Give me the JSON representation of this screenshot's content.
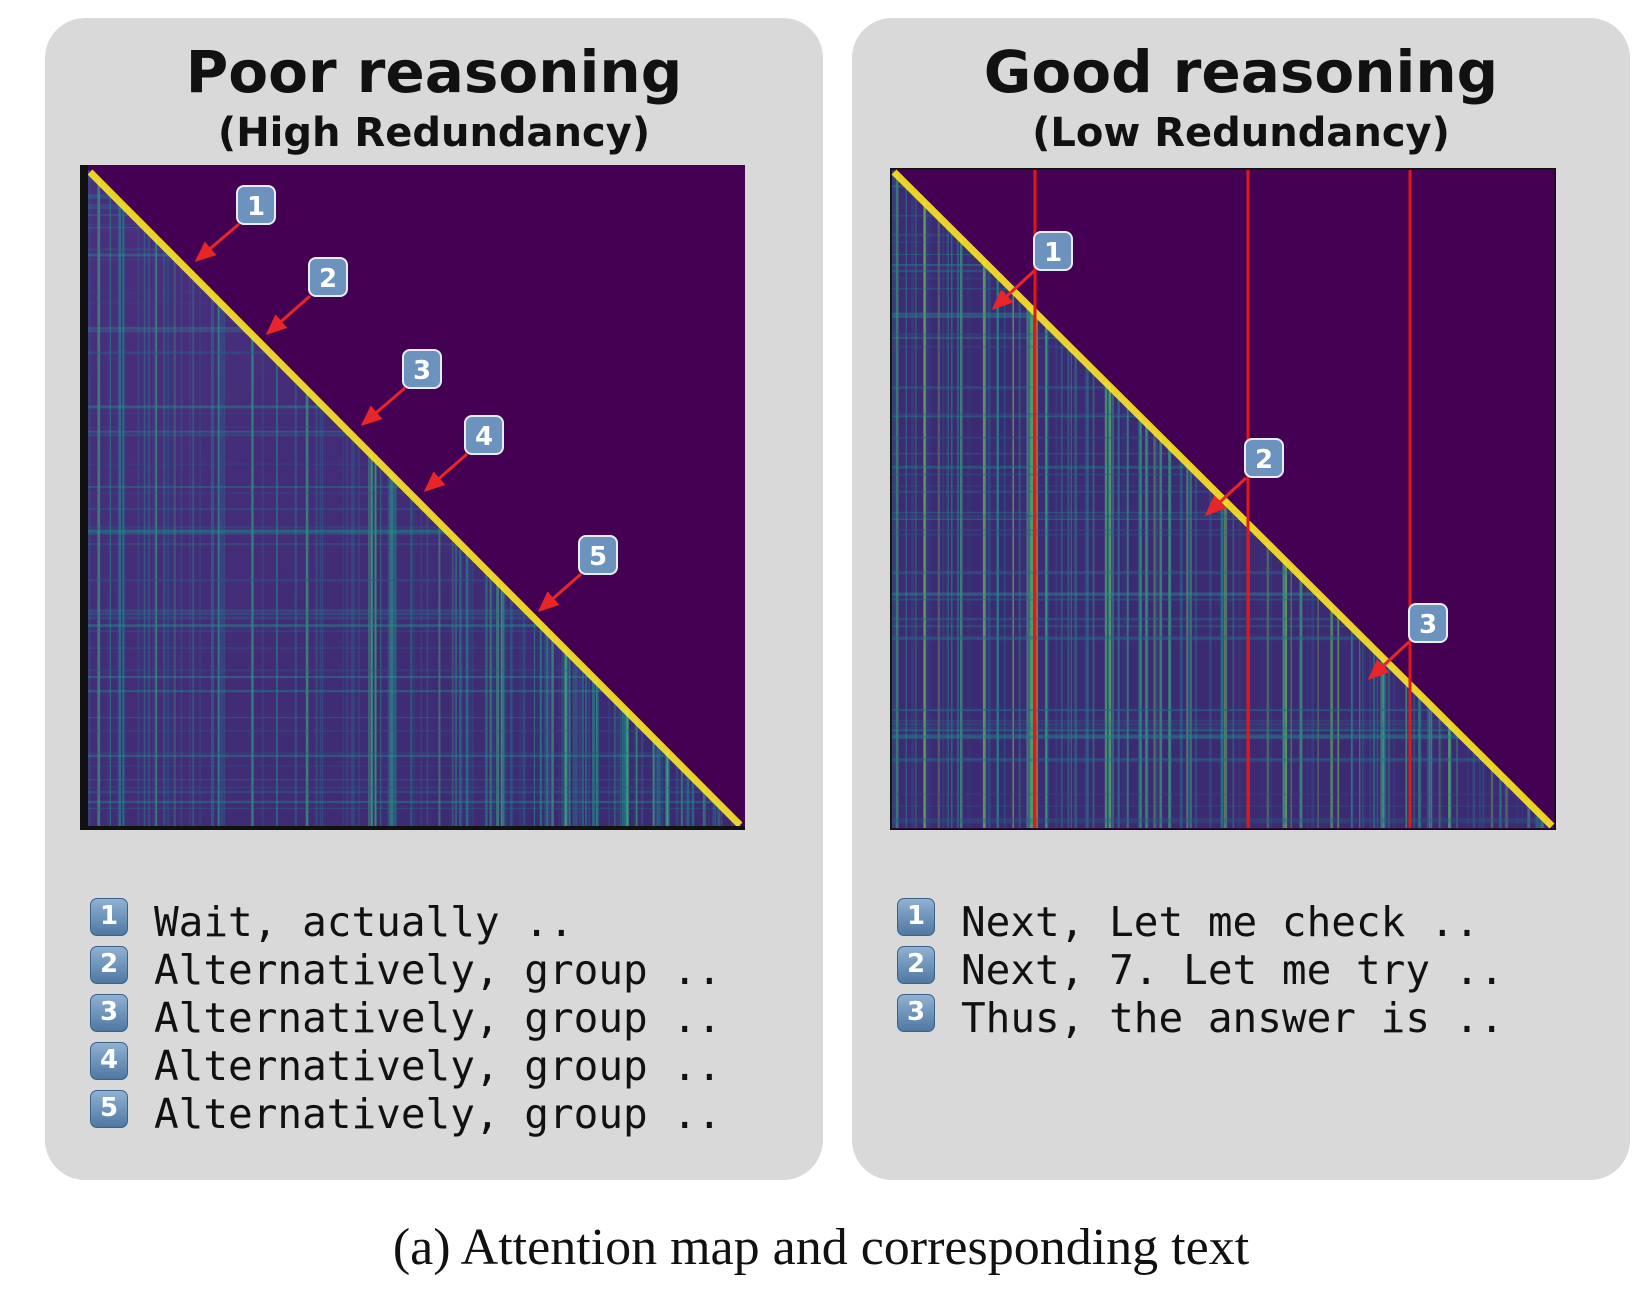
{
  "panels": {
    "left": {
      "title": "Poor reasoning",
      "subtitle": "(High Redundancy)",
      "callouts": [
        "1",
        "2",
        "3",
        "4",
        "5"
      ],
      "steps": [
        {
          "badge": "1",
          "text": "Wait, actually .."
        },
        {
          "badge": "2",
          "text": "Alternatively, group .."
        },
        {
          "badge": "3",
          "text": "Alternatively, group .."
        },
        {
          "badge": "4",
          "text": "Alternatively, group .."
        },
        {
          "badge": "5",
          "text": "Alternatively, group .."
        }
      ]
    },
    "right": {
      "title": "Good reasoning",
      "subtitle": "(Low Redundancy)",
      "callouts": [
        "1",
        "2",
        "3"
      ],
      "steps": [
        {
          "badge": "1",
          "text": "Next, Let me check .."
        },
        {
          "badge": "2",
          "text": "Next, 7. Let me try .."
        },
        {
          "badge": "3",
          "text": "Thus, the answer is .."
        }
      ]
    }
  },
  "caption": "(a) Attention map and corresponding text",
  "colors": {
    "map_background": "#440154",
    "map_dark": "#3b2a6e",
    "map_mid": "#2c728e",
    "map_high": "#fde725",
    "arrow": "#e8262a",
    "boundary_line": "#e01818",
    "badge": "#6b93bd",
    "panel": "#d9d9d9"
  }
}
